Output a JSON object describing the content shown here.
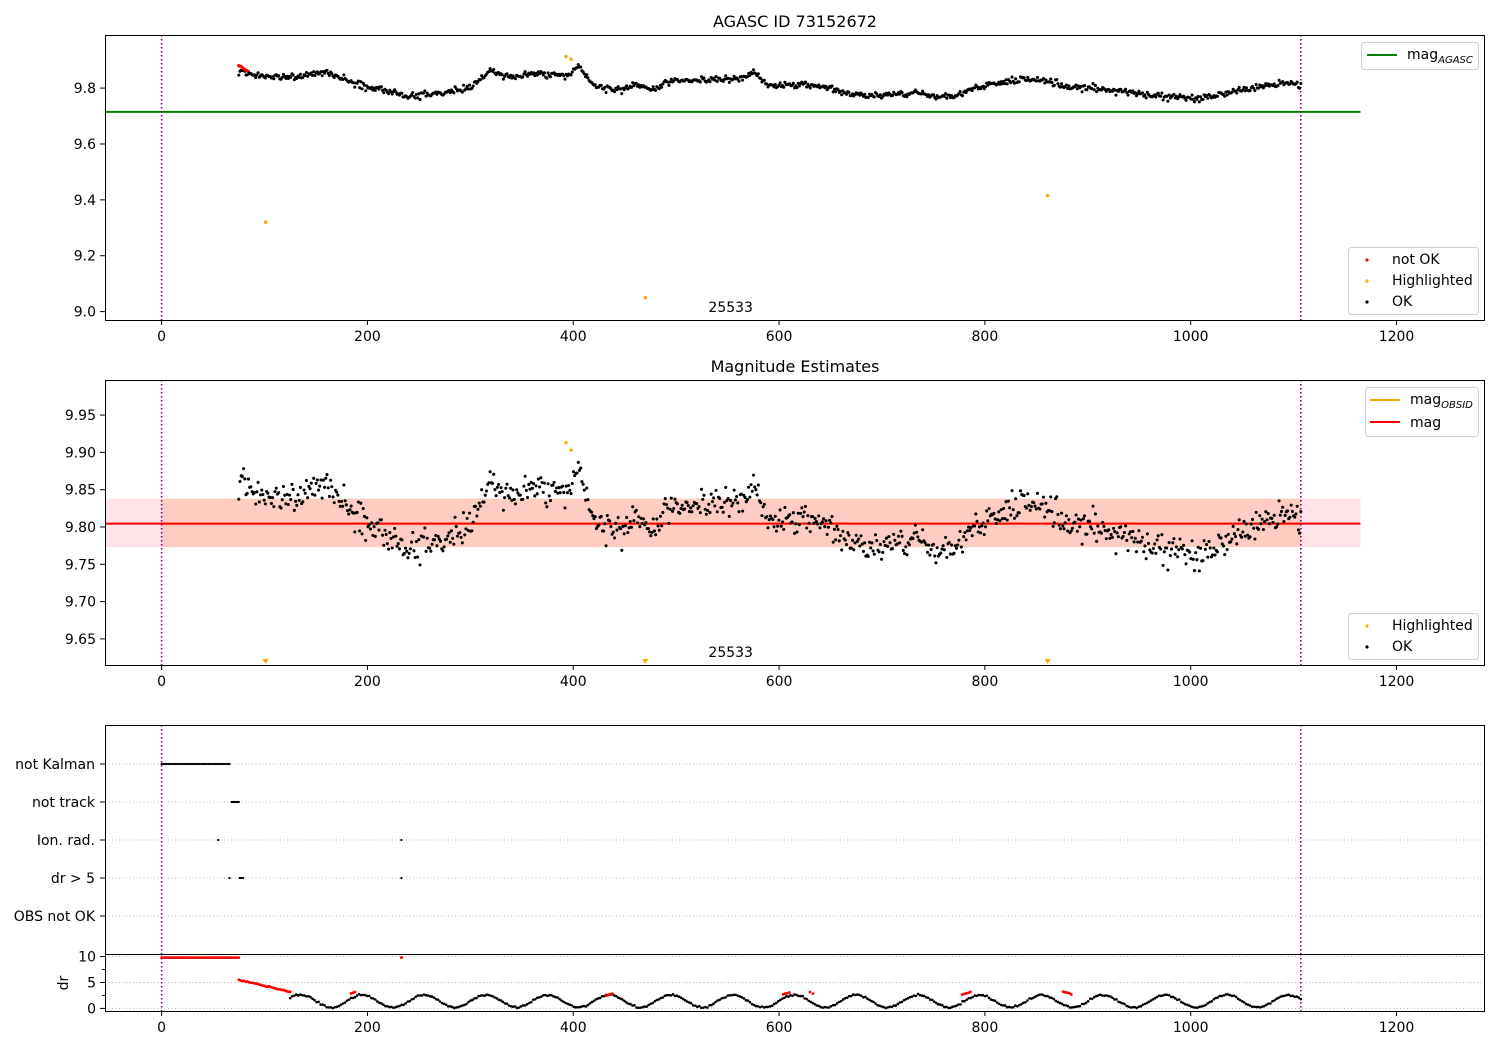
{
  "colors": {
    "ok": "#000000",
    "not_ok": "#ff0000",
    "highlighted": "#ffa500",
    "agasc_line": "#008000",
    "mag_line": "#ff0000",
    "mag_obsid_line": "#ffa500",
    "band_outer": "#ffc0cb",
    "band_inner": "#ffa07a",
    "obs_boundary": "#800080",
    "grid": "#b0b0b0"
  },
  "chart_data": [
    {
      "type": "scatter",
      "title": "AGASC ID 73152672",
      "xlim": [
        -55,
        1285
      ],
      "ylim": [
        8.97,
        9.99
      ],
      "xticks": [
        0,
        200,
        400,
        600,
        800,
        1000,
        1200
      ],
      "yticks": [
        9.0,
        9.2,
        9.4,
        9.6,
        9.8
      ],
      "ytick_labels": [
        "9.0",
        "9.2",
        "9.4",
        "9.6",
        "9.8"
      ],
      "obs_boundaries": [
        0,
        1107
      ],
      "obsid_annotation": {
        "text": "25533",
        "x": 553
      },
      "hlines": [
        {
          "name": "mag_AGASC",
          "y": 9.715,
          "x": [
            -55,
            1165
          ],
          "color": "#008000"
        }
      ],
      "legend_lines": [
        {
          "label": "mag",
          "sub": "AGASC",
          "color": "#008000"
        }
      ],
      "legend_points": [
        {
          "label": "not OK",
          "color": "#ff0000"
        },
        {
          "label": "Highlighted",
          "color": "#ffa500"
        },
        {
          "label": "OK",
          "color": "#000000"
        }
      ],
      "legend_lines_placement": "upper right",
      "legend_points_placement": "lower right",
      "series": [
        {
          "name": "not OK",
          "x": [
            75,
            77,
            79,
            81,
            83
          ],
          "y": [
            9.88,
            9.878,
            9.872,
            9.866,
            9.862
          ]
        },
        {
          "name": "Highlighted",
          "x": [
            101,
            393,
            398,
            470,
            861
          ],
          "y": [
            9.32,
            9.913,
            9.903,
            9.05,
            9.415
          ]
        },
        {
          "name": "OK",
          "range": [
            75,
            1107
          ],
          "n": 880,
          "level": [
            [
              75,
              9.86
            ],
            [
              85,
              9.85
            ],
            [
              100,
              9.845
            ],
            [
              120,
              9.84
            ],
            [
              140,
              9.845
            ],
            [
              160,
              9.855
            ],
            [
              180,
              9.83
            ],
            [
              200,
              9.8
            ],
            [
              220,
              9.795
            ],
            [
              240,
              9.77
            ],
            [
              260,
              9.778
            ],
            [
              280,
              9.79
            ],
            [
              300,
              9.8
            ],
            [
              320,
              9.865
            ],
            [
              340,
              9.835
            ],
            [
              360,
              9.85
            ],
            [
              380,
              9.848
            ],
            [
              395,
              9.84
            ],
            [
              405,
              9.88
            ],
            [
              420,
              9.81
            ],
            [
              440,
              9.79
            ],
            [
              460,
              9.81
            ],
            [
              480,
              9.795
            ],
            [
              500,
              9.83
            ],
            [
              520,
              9.825
            ],
            [
              540,
              9.83
            ],
            [
              560,
              9.83
            ],
            [
              575,
              9.86
            ],
            [
              590,
              9.81
            ],
            [
              620,
              9.815
            ],
            [
              650,
              9.8
            ],
            [
              670,
              9.775
            ],
            [
              700,
              9.775
            ],
            [
              730,
              9.78
            ],
            [
              750,
              9.775
            ],
            [
              770,
              9.768
            ],
            [
              790,
              9.8
            ],
            [
              810,
              9.82
            ],
            [
              840,
              9.83
            ],
            [
              860,
              9.825
            ],
            [
              880,
              9.805
            ],
            [
              900,
              9.8
            ],
            [
              930,
              9.79
            ],
            [
              960,
              9.775
            ],
            [
              990,
              9.765
            ],
            [
              1010,
              9.765
            ],
            [
              1030,
              9.78
            ],
            [
              1060,
              9.8
            ],
            [
              1090,
              9.82
            ],
            [
              1107,
              9.81
            ]
          ],
          "noise": 0.012
        }
      ]
    },
    {
      "type": "scatter",
      "title": "Magnitude Estimates",
      "xlim": [
        -55,
        1285
      ],
      "ylim": [
        9.615,
        9.997
      ],
      "xticks": [
        0,
        200,
        400,
        600,
        800,
        1000,
        1200
      ],
      "yticks": [
        9.65,
        9.7,
        9.75,
        9.8,
        9.85,
        9.9,
        9.95
      ],
      "ytick_labels": [
        "9.65",
        "9.70",
        "9.75",
        "9.80",
        "9.85",
        "9.90",
        "9.95"
      ],
      "obs_boundaries": [
        0,
        1107
      ],
      "obsid_annotation": {
        "text": "25533",
        "x": 553
      },
      "band_outer": {
        "y": [
          9.773,
          9.838
        ],
        "x": [
          -55,
          1165
        ]
      },
      "band_inner": {
        "y": [
          9.773,
          9.838
        ],
        "x": [
          0,
          1107
        ]
      },
      "hlines": [
        {
          "name": "mag_OBSID",
          "y": 9.8045,
          "x": [
            0,
            1107
          ],
          "color": "#ffa500"
        },
        {
          "name": "mag",
          "y": 9.8045,
          "x": [
            -55,
            1165
          ],
          "color": "#ff0000"
        }
      ],
      "legend_lines": [
        {
          "label": "mag",
          "sub": "OBSID",
          "color": "#ffa500"
        },
        {
          "label": "mag",
          "sub": "",
          "color": "#ff0000"
        }
      ],
      "legend_points": [
        {
          "label": "Highlighted",
          "color": "#ffa500"
        },
        {
          "label": "OK",
          "color": "#000000"
        }
      ],
      "legend_lines_placement": "upper right",
      "legend_points_placement": "lower right",
      "offscale_markers": {
        "x": [
          101,
          470,
          861
        ],
        "color": "#ffa500"
      },
      "series": [
        {
          "name": "Highlighted",
          "x": [
            393,
            398
          ],
          "y": [
            9.913,
            9.903
          ]
        },
        {
          "name": "OK",
          "range": [
            75,
            1107
          ],
          "n": 880,
          "level": [
            [
              75,
              9.86
            ],
            [
              85,
              9.85
            ],
            [
              100,
              9.845
            ],
            [
              120,
              9.84
            ],
            [
              140,
              9.845
            ],
            [
              160,
              9.855
            ],
            [
              180,
              9.83
            ],
            [
              200,
              9.8
            ],
            [
              220,
              9.795
            ],
            [
              240,
              9.77
            ],
            [
              260,
              9.778
            ],
            [
              280,
              9.79
            ],
            [
              300,
              9.8
            ],
            [
              320,
              9.865
            ],
            [
              340,
              9.835
            ],
            [
              360,
              9.85
            ],
            [
              380,
              9.848
            ],
            [
              395,
              9.84
            ],
            [
              405,
              9.88
            ],
            [
              420,
              9.81
            ],
            [
              440,
              9.79
            ],
            [
              460,
              9.81
            ],
            [
              480,
              9.795
            ],
            [
              500,
              9.83
            ],
            [
              520,
              9.825
            ],
            [
              540,
              9.83
            ],
            [
              560,
              9.83
            ],
            [
              575,
              9.86
            ],
            [
              590,
              9.81
            ],
            [
              620,
              9.815
            ],
            [
              650,
              9.8
            ],
            [
              670,
              9.775
            ],
            [
              700,
              9.775
            ],
            [
              730,
              9.78
            ],
            [
              750,
              9.775
            ],
            [
              770,
              9.768
            ],
            [
              790,
              9.8
            ],
            [
              810,
              9.82
            ],
            [
              840,
              9.83
            ],
            [
              860,
              9.825
            ],
            [
              880,
              9.805
            ],
            [
              900,
              9.8
            ],
            [
              930,
              9.79
            ],
            [
              960,
              9.775
            ],
            [
              990,
              9.765
            ],
            [
              1010,
              9.765
            ],
            [
              1030,
              9.78
            ],
            [
              1060,
              9.8
            ],
            [
              1090,
              9.82
            ],
            [
              1107,
              9.81
            ]
          ],
          "noise": 0.012
        }
      ]
    },
    {
      "type": "scatter",
      "title": "",
      "xlim": [
        -55,
        1285
      ],
      "categories": [
        "not Kalman",
        "not track",
        "Ion. rad.",
        "dr > 5",
        "OBS not OK"
      ],
      "obs_boundaries": [
        0,
        1107
      ],
      "series": [
        {
          "name": "not Kalman",
          "x_range": [
            0,
            66
          ],
          "n": 40
        },
        {
          "name": "not track",
          "x": [
            68,
            69,
            70,
            71,
            72,
            73,
            74,
            75
          ]
        },
        {
          "name": "Ion. rad.",
          "x": [
            55,
            233
          ]
        },
        {
          "name": "dr > 5",
          "x": [
            66,
            76,
            77,
            78,
            79,
            233
          ]
        },
        {
          "name": "OBS not OK",
          "x": []
        }
      ]
    },
    {
      "type": "scatter",
      "title": "",
      "ylabel": "dr",
      "xlim": [
        -55,
        1285
      ],
      "ylim": [
        -0.5,
        10.5
      ],
      "xticks": [
        0,
        200,
        400,
        600,
        800,
        1000,
        1200
      ],
      "yticks": [
        0,
        5,
        10
      ],
      "obs_boundaries": [
        0,
        1107
      ],
      "series": [
        {
          "name": "dr not OK",
          "segments": [
            [
              0,
              75,
              9.8,
              9.8
            ],
            [
              75,
              125,
              5.5,
              3.2
            ],
            [
              184,
              188,
              2.8,
              3.2
            ],
            [
              233,
              233,
              9.8,
              9.8
            ],
            [
              432,
              438,
              2.5,
              2.9
            ],
            [
              604,
              610,
              2.8,
              3.1
            ],
            [
              630,
              633,
              3.2,
              2.8
            ],
            [
              778,
              786,
              2.6,
              3.1
            ],
            [
              876,
              884,
              3.2,
              2.8
            ]
          ]
        },
        {
          "name": "dr OK",
          "range": [
            125,
            1107
          ],
          "n": 500,
          "period": 60,
          "amplitude": 1.2,
          "offset": 1.4
        }
      ]
    }
  ]
}
